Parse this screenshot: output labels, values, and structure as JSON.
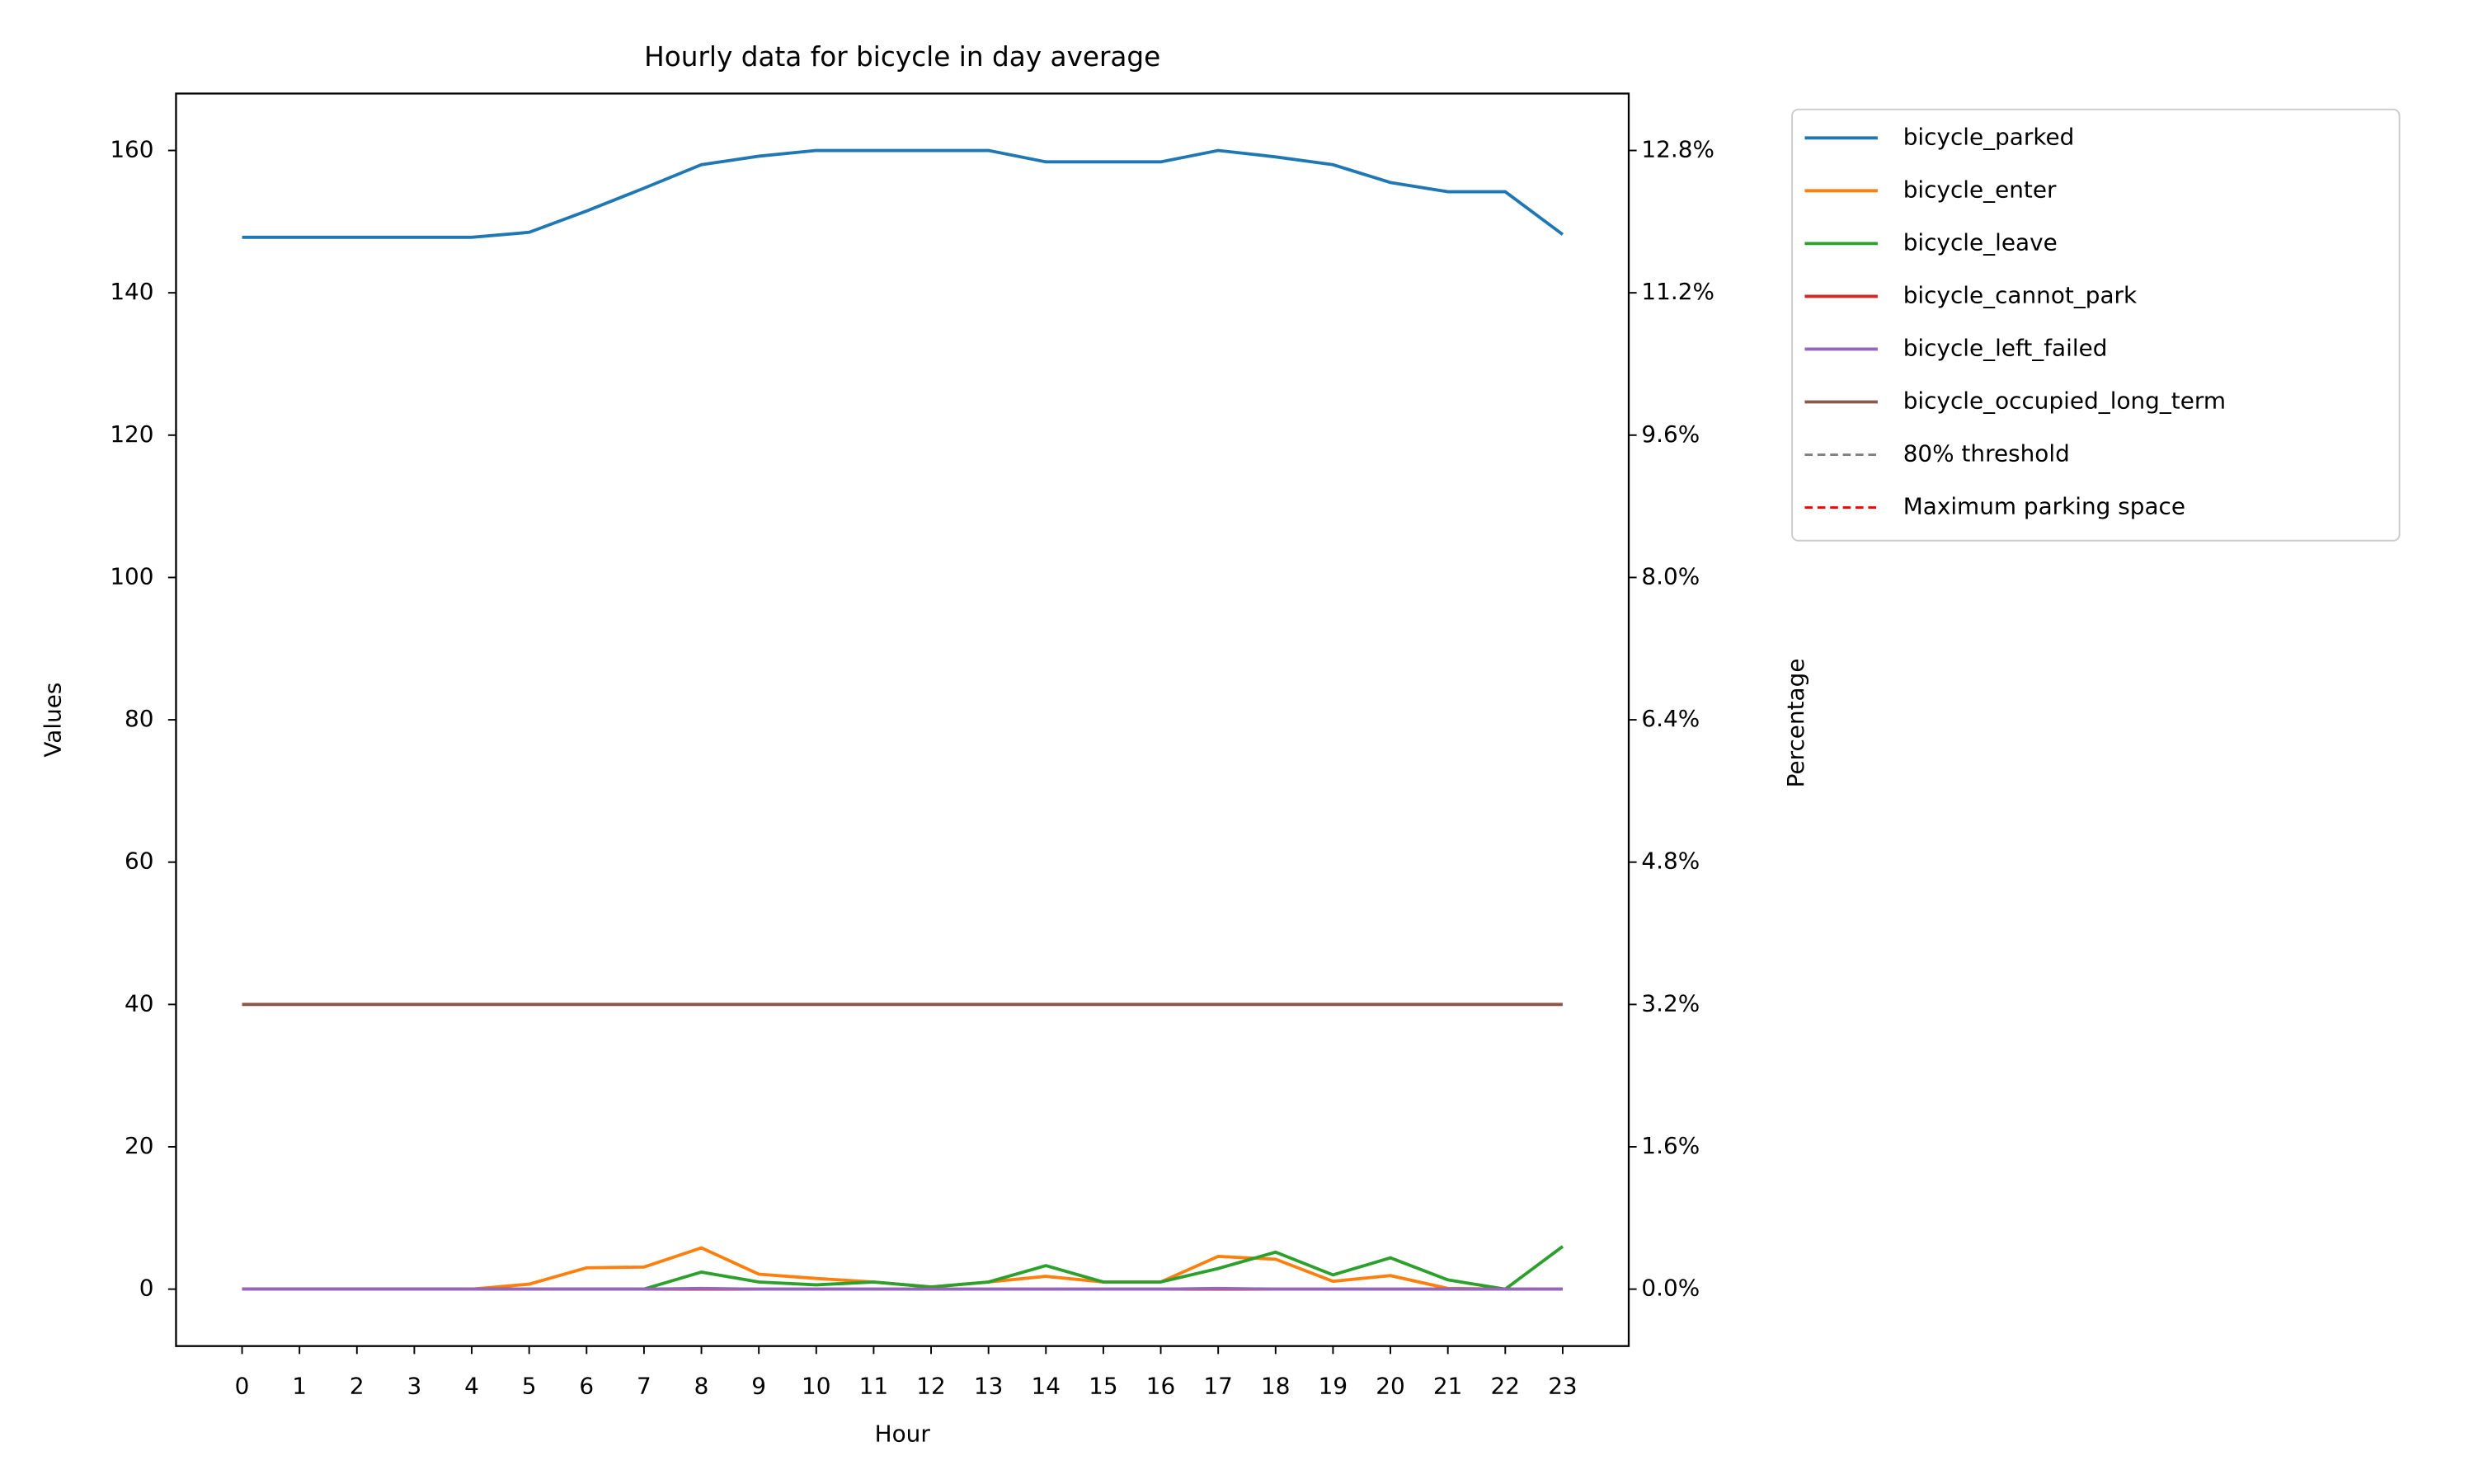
{
  "chart_data": {
    "type": "line",
    "title": "Hourly data for bicycle in day average",
    "xlabel": "Hour",
    "ylabel": "Values",
    "y2label": "Percentage",
    "x": [
      0,
      1,
      2,
      3,
      4,
      5,
      6,
      7,
      8,
      9,
      10,
      11,
      12,
      13,
      14,
      15,
      16,
      17,
      18,
      19,
      20,
      21,
      22,
      23
    ],
    "xlim": [
      -1.15,
      24.15
    ],
    "xticks": [
      0,
      1,
      2,
      3,
      4,
      5,
      6,
      7,
      8,
      9,
      10,
      11,
      12,
      13,
      14,
      15,
      16,
      17,
      18,
      19,
      20,
      21,
      22,
      23
    ],
    "ylim": [
      -8,
      168
    ],
    "yticks": [
      0,
      20,
      40,
      60,
      80,
      100,
      120,
      140,
      160
    ],
    "y2lim": [
      -0.64,
      13.44
    ],
    "y2ticks": [
      {
        "value": 0,
        "label": "0.0%"
      },
      {
        "value": 1.6,
        "label": "1.6%"
      },
      {
        "value": 3.2,
        "label": "3.2%"
      },
      {
        "value": 4.8,
        "label": "4.8%"
      },
      {
        "value": 6.4,
        "label": "6.4%"
      },
      {
        "value": 8,
        "label": "8.0%"
      },
      {
        "value": 9.6,
        "label": "9.6%"
      },
      {
        "value": 11.2,
        "label": "11.2%"
      },
      {
        "value": 12.8,
        "label": "12.8%"
      }
    ],
    "legend": "outside upper right",
    "series": [
      {
        "name": "bicycle_parked",
        "color": "#1f77b4",
        "values": [
          147.8,
          147.8,
          147.8,
          147.8,
          147.8,
          148.5,
          151.5,
          154.7,
          158,
          159.2,
          160,
          160,
          160,
          160,
          158.4,
          158.4,
          158.4,
          160,
          159.1,
          158,
          155.5,
          154.2,
          154.2,
          148.2
        ]
      },
      {
        "name": "bicycle_enter",
        "color": "#ff7f0e",
        "values": [
          0,
          0,
          0,
          0,
          0,
          0.7,
          3,
          3.1,
          5.8,
          2.1,
          1.5,
          1,
          0.3,
          1,
          1.8,
          1,
          1,
          4.6,
          4.2,
          1.1,
          1.9,
          0.1,
          0,
          0
        ]
      },
      {
        "name": "bicycle_leave",
        "color": "#2ca02c",
        "values": [
          0,
          0,
          0,
          0,
          0,
          0,
          0,
          0,
          2.4,
          1,
          0.6,
          1,
          0.3,
          1,
          3.3,
          1,
          1,
          2.9,
          5.2,
          2,
          4.4,
          1.3,
          0,
          6
        ]
      },
      {
        "name": "bicycle_cannot_park",
        "color": "#d62728",
        "values": [
          0,
          0,
          0,
          0,
          0,
          0,
          0,
          0,
          0,
          0,
          0,
          0,
          0,
          0,
          0,
          0,
          0,
          0,
          0,
          0,
          0,
          0,
          0,
          0
        ]
      },
      {
        "name": "bicycle_left_failed",
        "color": "#9467bd",
        "values": [
          0,
          0,
          0,
          0,
          0,
          0,
          0,
          0,
          0.1,
          0,
          0,
          0,
          0,
          0,
          0,
          0,
          0,
          0.1,
          0,
          0,
          0,
          0,
          0,
          0
        ]
      },
      {
        "name": "bicycle_occupied_long_term",
        "color": "#8c564b",
        "values": [
          40,
          40,
          40,
          40,
          40,
          40,
          40,
          40,
          40,
          40,
          40,
          40,
          40,
          40,
          40,
          40,
          40,
          40,
          40,
          40,
          40,
          40,
          40,
          40
        ]
      },
      {
        "name": "80% threshold",
        "color": "#808080",
        "dash": "dashed",
        "axis": "y2"
      },
      {
        "name": "Maximum parking space",
        "color": "#ff0000",
        "dash": "dashed",
        "axis": "y2"
      }
    ]
  }
}
